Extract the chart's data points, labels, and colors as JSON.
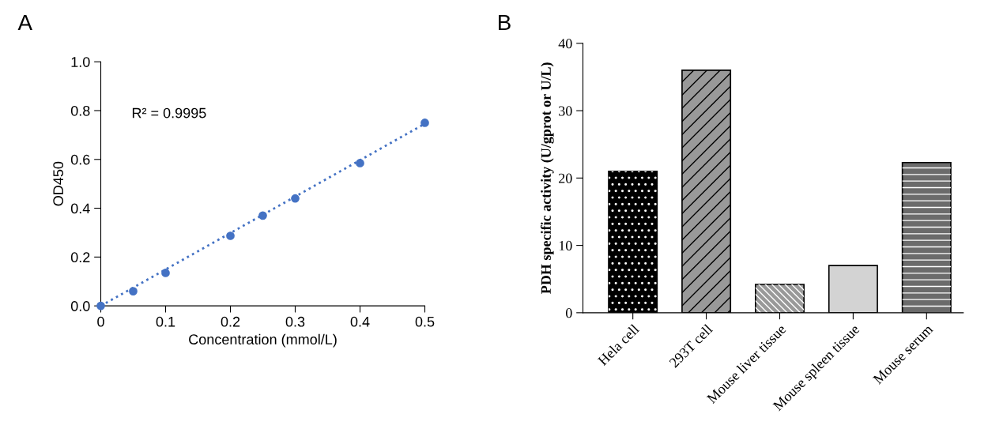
{
  "chart_data": [
    {
      "type": "scatter",
      "annotations": [
        "A",
        "R² = 0.9995"
      ],
      "xlabel": "Concentration (mmol/L)",
      "ylabel": "OD450",
      "series": [
        {
          "type": "scatter",
          "color": "#4472c4",
          "marker": "circle",
          "x": [
            0,
            0.05,
            0.1,
            0.2,
            0.25,
            0.3,
            0.4,
            0.5
          ],
          "values": [
            0.0,
            0.06,
            0.135,
            0.287,
            0.37,
            0.44,
            0.585,
            0.75
          ]
        },
        {
          "type": "line",
          "color": "#4472c4",
          "line_style": "dotted",
          "marker": "none",
          "x": [
            0,
            0.5
          ],
          "values": [
            0.0,
            0.746
          ]
        }
      ],
      "xlim": [
        0,
        0.5
      ],
      "xticks": [
        0,
        0.1,
        0.2,
        0.3,
        0.4,
        0.5
      ],
      "ylim": [
        0,
        1.0
      ],
      "yticks": [
        {
          "value": 0,
          "label": "0.0"
        },
        {
          "value": 0.2,
          "label": "0.2"
        },
        {
          "value": 0.4,
          "label": "0.4"
        },
        {
          "value": 0.6,
          "label": "0.6"
        },
        {
          "value": 0.8,
          "label": "0.8"
        },
        {
          "value": 1.0,
          "label": "1.0"
        }
      ],
      "grid": false,
      "legend": false
    },
    {
      "type": "bar",
      "annotations": [
        "B"
      ],
      "ylabel": "PDH specific activity (U/gprot or U/L)",
      "categories": [
        "Hela cell",
        "293T cell",
        "Mouse liver tissue",
        "Mouse spleen tissue",
        "Mouse serum"
      ],
      "values": [
        21.0,
        36.0,
        4.2,
        7.0,
        22.3
      ],
      "colors": [
        "#000000",
        "#999999",
        "#999999",
        "#d3d3d3",
        "#6b6b6b"
      ],
      "ylim": [
        0,
        40
      ],
      "yticks": [
        0,
        10,
        20,
        30,
        40
      ],
      "grid": false,
      "legend": false
    }
  ]
}
